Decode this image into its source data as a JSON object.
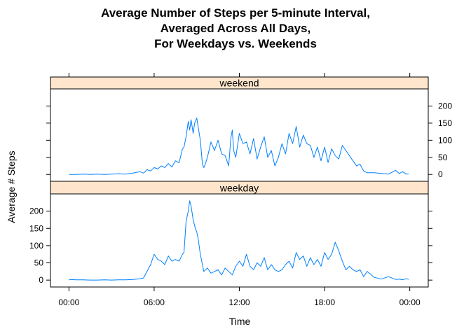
{
  "chart_data": {
    "type": "line",
    "title_lines": [
      "Average Number of Steps per 5-minute Interval,",
      "Averaged Across All Days,",
      "For Weekdays vs. Weekends"
    ],
    "xlabel": "Time",
    "ylabel": "Average # Steps",
    "x_unit": "hours since 00:00",
    "xlim": [
      -1.3,
      25.3
    ],
    "x_ticks": [
      0,
      6,
      12,
      18,
      24
    ],
    "x_tick_labels": [
      "00:00",
      "06:00",
      "12:00",
      "18:00",
      "00:00"
    ],
    "ylim": [
      -20,
      250
    ],
    "y_ticks": [
      0,
      50,
      100,
      150,
      200
    ],
    "y_tick_labels": [
      "0",
      "50",
      "100",
      "150",
      "200"
    ],
    "line_color": "#0080ff",
    "strip_color": "#ffe5cc",
    "panels": [
      {
        "strip_label": "weekend",
        "x": [
          0,
          0.5,
          1,
          1.5,
          2,
          2.5,
          3,
          3.5,
          4,
          4.5,
          5,
          5.25,
          5.5,
          5.75,
          6,
          6.25,
          6.5,
          6.75,
          7,
          7.25,
          7.5,
          7.75,
          8,
          8.1,
          8.25,
          8.4,
          8.5,
          8.6,
          8.75,
          8.85,
          9,
          9.1,
          9.25,
          9.4,
          9.5,
          9.6,
          9.75,
          10,
          10.25,
          10.5,
          10.75,
          11,
          11.25,
          11.4,
          11.5,
          11.6,
          11.75,
          12,
          12.25,
          12.5,
          12.75,
          13,
          13.25,
          13.5,
          13.75,
          14,
          14.25,
          14.5,
          14.75,
          15,
          15.25,
          15.5,
          15.75,
          16,
          16.25,
          16.5,
          16.75,
          17,
          17.25,
          17.5,
          17.75,
          18,
          18.25,
          18.5,
          18.75,
          19,
          19.25,
          19.5,
          19.75,
          20,
          20.25,
          20.5,
          20.75,
          21,
          21.5,
          22,
          22.5,
          23,
          23.25,
          23.5,
          23.75,
          23.92
        ],
        "y": [
          0,
          0,
          1,
          0,
          1,
          0,
          1,
          2,
          1,
          4,
          8,
          4,
          14,
          10,
          20,
          16,
          25,
          20,
          32,
          22,
          40,
          34,
          75,
          80,
          110,
          155,
          130,
          160,
          120,
          150,
          165,
          140,
          100,
          30,
          20,
          30,
          50,
          95,
          70,
          100,
          60,
          55,
          25,
          105,
          130,
          70,
          50,
          120,
          90,
          95,
          60,
          105,
          45,
          80,
          110,
          50,
          70,
          25,
          50,
          90,
          60,
          120,
          90,
          140,
          80,
          115,
          90,
          85,
          50,
          80,
          40,
          80,
          35,
          75,
          55,
          45,
          85,
          70,
          55,
          40,
          25,
          30,
          10,
          5,
          5,
          3,
          1,
          12,
          3,
          8,
          1,
          2
        ]
      },
      {
        "strip_label": "weekday",
        "x": [
          0,
          0.5,
          1,
          1.5,
          2,
          2.5,
          3,
          3.5,
          4,
          4.5,
          5,
          5.25,
          5.5,
          5.75,
          6,
          6.25,
          6.5,
          6.75,
          7,
          7.25,
          7.5,
          7.75,
          8,
          8.1,
          8.25,
          8.4,
          8.5,
          8.6,
          8.75,
          8.9,
          9,
          9.1,
          9.25,
          9.5,
          9.75,
          10,
          10.25,
          10.5,
          10.75,
          11,
          11.25,
          11.5,
          11.75,
          12,
          12.25,
          12.5,
          12.75,
          13,
          13.25,
          13.5,
          13.75,
          14,
          14.25,
          14.5,
          14.75,
          15,
          15.25,
          15.5,
          15.75,
          16,
          16.25,
          16.5,
          16.75,
          17,
          17.25,
          17.5,
          17.75,
          18,
          18.25,
          18.5,
          18.75,
          19,
          19.25,
          19.5,
          19.75,
          20,
          20.25,
          20.5,
          20.75,
          21,
          21.5,
          22,
          22.5,
          23,
          23.25,
          23.5,
          23.75,
          23.92
        ],
        "y": [
          2,
          1,
          1,
          0,
          0,
          1,
          0,
          1,
          1,
          2,
          4,
          6,
          25,
          45,
          75,
          60,
          55,
          45,
          70,
          55,
          60,
          55,
          75,
          80,
          170,
          200,
          230,
          215,
          175,
          150,
          140,
          120,
          75,
          25,
          35,
          20,
          25,
          30,
          15,
          35,
          25,
          15,
          40,
          55,
          40,
          75,
          40,
          30,
          50,
          40,
          65,
          30,
          45,
          30,
          25,
          30,
          45,
          55,
          35,
          80,
          60,
          70,
          40,
          65,
          45,
          60,
          40,
          80,
          60,
          75,
          110,
          85,
          55,
          30,
          40,
          30,
          25,
          30,
          10,
          25,
          8,
          3,
          10,
          2,
          3,
          1,
          4,
          2
        ]
      }
    ]
  }
}
